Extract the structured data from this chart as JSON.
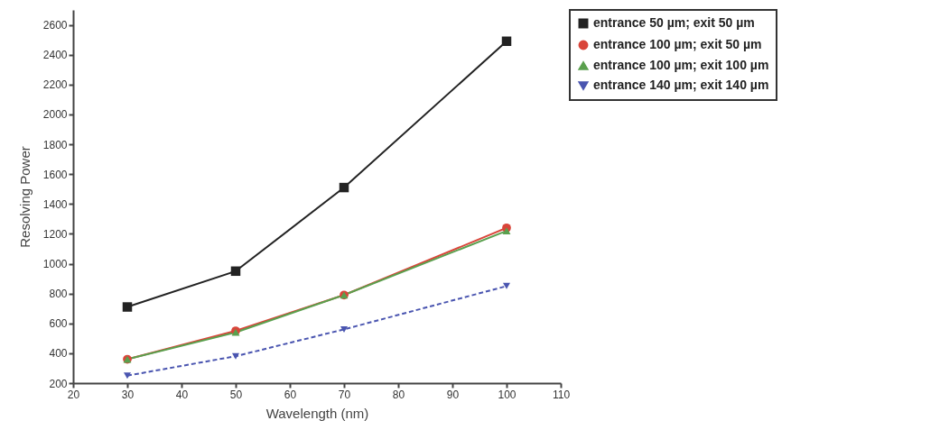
{
  "chart_data": {
    "type": "line",
    "xlabel": "Wavelength (nm)",
    "ylabel": "Resolving Power",
    "x": [
      30,
      50,
      70,
      100
    ],
    "series": [
      {
        "name": "entrance 50 µm; exit 50 µm",
        "color": "#222222",
        "marker": "square",
        "line_style": "solid",
        "values": [
          710,
          950,
          1510,
          2490
        ]
      },
      {
        "name": "entrance 100 µm; exit 50 µm",
        "color": "#d9453a",
        "marker": "circle",
        "line_style": "solid",
        "values": [
          360,
          550,
          790,
          1240
        ]
      },
      {
        "name": "entrance 100 µm; exit 100 µm",
        "color": "#5aa04e",
        "marker": "triangle",
        "line_style": "solid",
        "values": [
          360,
          540,
          790,
          1220
        ]
      },
      {
        "name": "entrance 140 µm; exit 140 µm",
        "color": "#4a55b0",
        "marker": "triangle-down",
        "line_style": "dashed",
        "values": [
          250,
          380,
          560,
          850
        ]
      }
    ],
    "xlim": [
      20,
      110
    ],
    "xticks": [
      20,
      30,
      40,
      50,
      60,
      70,
      80,
      90,
      100,
      110
    ],
    "ylim": [
      200,
      2700
    ],
    "yticks": [
      200,
      400,
      600,
      800,
      1000,
      1200,
      1400,
      1600,
      1800,
      2000,
      2200,
      2400,
      2600
    ],
    "grid": false,
    "legend": "right"
  }
}
